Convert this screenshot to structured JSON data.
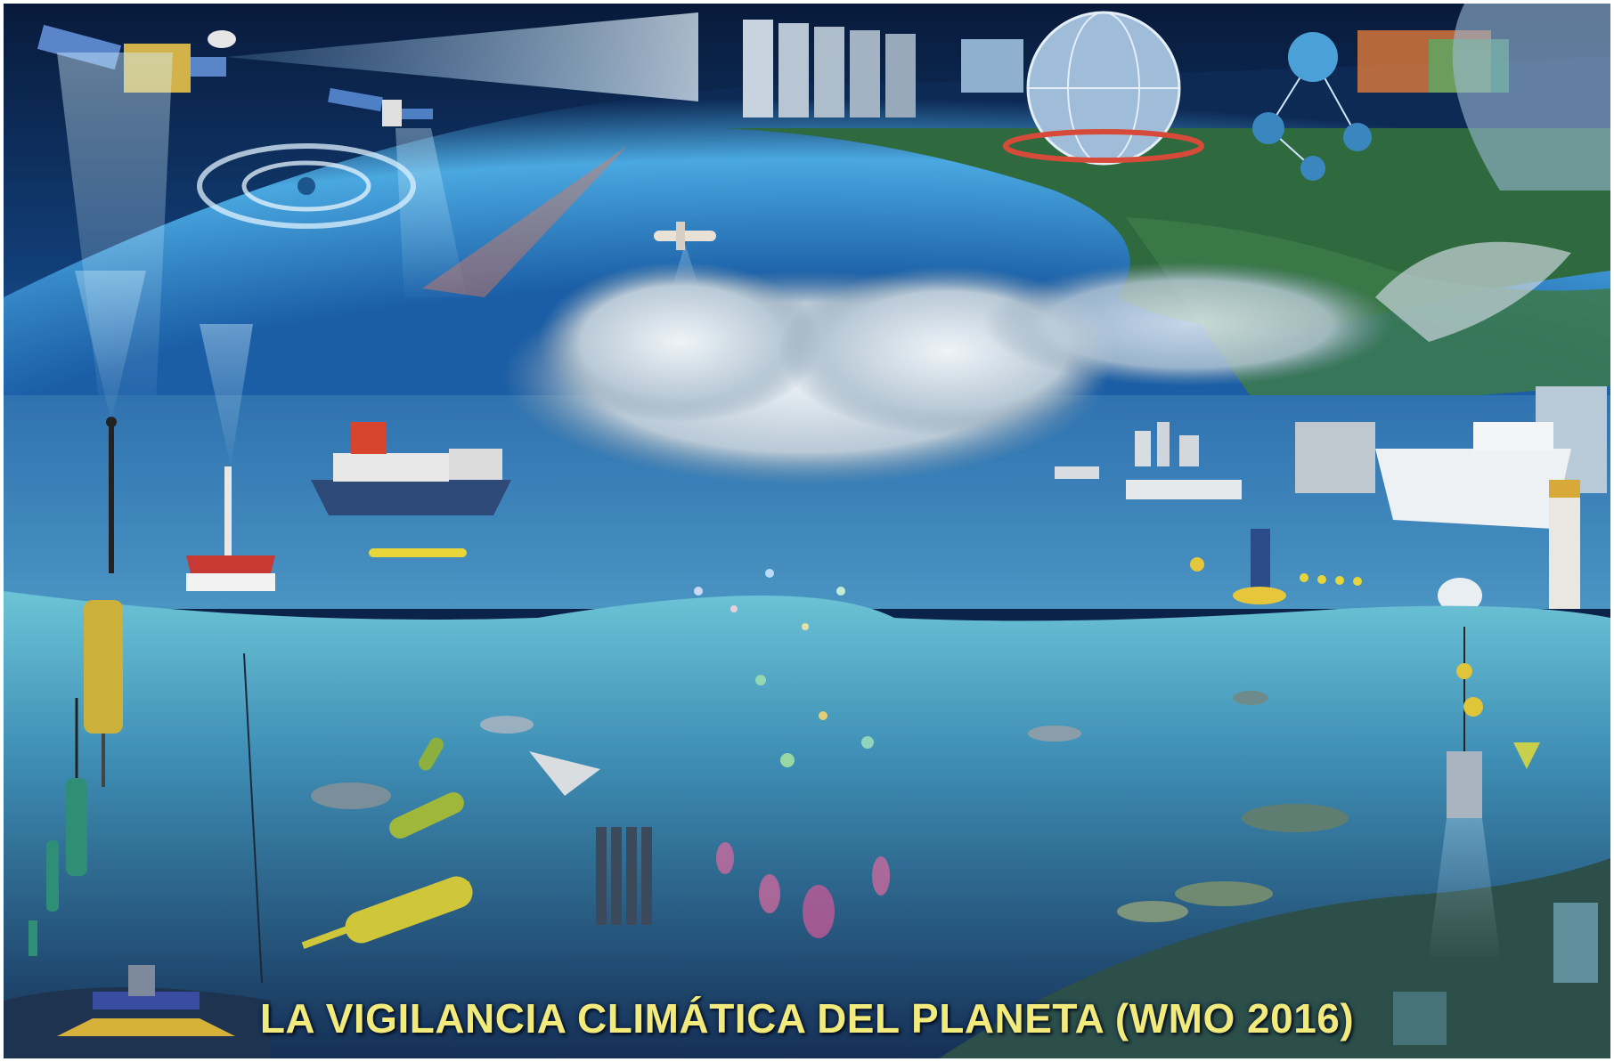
{
  "caption": "LA VIGILANCIA CLIMÁTICA DEL PLANETA (WMO 2016)",
  "colors": {
    "sky_deep": "#0b2348",
    "ocean_surface": "#2f6fae",
    "underwater": "#3f8fb6",
    "deep_water": "#1c3f66",
    "land": "#2f6a3f",
    "caption_text": "#f2ea7a"
  }
}
